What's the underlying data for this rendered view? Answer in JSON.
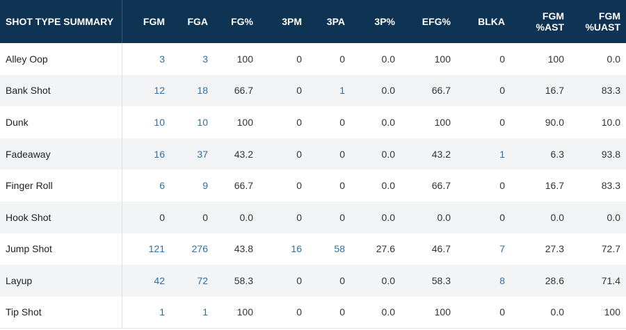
{
  "table": {
    "headers": [
      "SHOT TYPE SUMMARY",
      "FGM",
      "FGA",
      "FG%",
      "3PM",
      "3PA",
      "3P%",
      "EFG%",
      "BLKA",
      "FGM\n%AST",
      "FGM\n%UAST"
    ],
    "linked_columns": [
      1,
      2,
      4,
      5,
      8
    ],
    "rows": [
      [
        "Alley Oop",
        "3",
        "3",
        "100",
        "0",
        "0",
        "0.0",
        "100",
        "0",
        "100",
        "0.0"
      ],
      [
        "Bank Shot",
        "12",
        "18",
        "66.7",
        "0",
        "1",
        "0.0",
        "66.7",
        "0",
        "16.7",
        "83.3"
      ],
      [
        "Dunk",
        "10",
        "10",
        "100",
        "0",
        "0",
        "0.0",
        "100",
        "0",
        "90.0",
        "10.0"
      ],
      [
        "Fadeaway",
        "16",
        "37",
        "43.2",
        "0",
        "0",
        "0.0",
        "43.2",
        "1",
        "6.3",
        "93.8"
      ],
      [
        "Finger Roll",
        "6",
        "9",
        "66.7",
        "0",
        "0",
        "0.0",
        "66.7",
        "0",
        "16.7",
        "83.3"
      ],
      [
        "Hook Shot",
        "0",
        "0",
        "0.0",
        "0",
        "0",
        "0.0",
        "0.0",
        "0",
        "0.0",
        "0.0"
      ],
      [
        "Jump Shot",
        "121",
        "276",
        "43.8",
        "16",
        "58",
        "27.6",
        "46.7",
        "7",
        "27.3",
        "72.7"
      ],
      [
        "Layup",
        "42",
        "72",
        "58.3",
        "0",
        "0",
        "0.0",
        "58.3",
        "8",
        "28.6",
        "71.4"
      ],
      [
        "Tip Shot",
        "1",
        "1",
        "100",
        "0",
        "0",
        "0.0",
        "100",
        "0",
        "0.0",
        "100"
      ]
    ]
  },
  "colors": {
    "header_bg": "#0f3353",
    "link": "#2e6fa7",
    "stripe": "#f3f4f6"
  }
}
